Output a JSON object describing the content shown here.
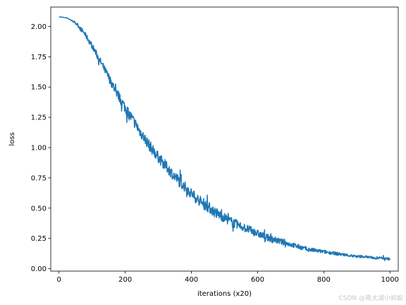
{
  "chart_data": {
    "type": "line",
    "title": "",
    "xlabel": "iterations (x20)",
    "ylabel": "loss",
    "xlim": [
      -25,
      1025
    ],
    "ylim": [
      -0.02,
      2.16
    ],
    "xticks": [
      0,
      200,
      400,
      600,
      800,
      1000
    ],
    "yticks": [
      0.0,
      0.25,
      0.5,
      0.75,
      1.0,
      1.25,
      1.5,
      1.75,
      2.0
    ],
    "ytick_labels": [
      "0.00",
      "0.25",
      "0.50",
      "0.75",
      "1.00",
      "1.25",
      "1.50",
      "1.75",
      "2.00"
    ],
    "grid": false,
    "series": [
      {
        "color": "#1f77b4",
        "x": [
          0,
          25,
          50,
          75,
          100,
          125,
          150,
          175,
          200,
          225,
          250,
          275,
          300,
          325,
          350,
          375,
          400,
          425,
          450,
          475,
          500,
          525,
          550,
          575,
          600,
          625,
          650,
          675,
          700,
          725,
          750,
          775,
          800,
          825,
          850,
          875,
          900,
          925,
          950,
          975,
          1000
        ],
        "values": [
          2.08,
          2.07,
          2.03,
          1.95,
          1.84,
          1.71,
          1.58,
          1.45,
          1.33,
          1.22,
          1.11,
          1.01,
          0.92,
          0.84,
          0.76,
          0.69,
          0.62,
          0.56,
          0.51,
          0.46,
          0.42,
          0.38,
          0.35,
          0.32,
          0.29,
          0.26,
          0.24,
          0.22,
          0.2,
          0.18,
          0.16,
          0.15,
          0.14,
          0.13,
          0.12,
          0.11,
          0.1,
          0.1,
          0.09,
          0.09,
          0.08
        ],
        "noise": [
          0,
          0.002,
          0.01,
          0.02,
          0.025,
          0.03,
          0.035,
          0.04,
          0.045,
          0.045,
          0.045,
          0.045,
          0.045,
          0.045,
          0.045,
          0.045,
          0.045,
          0.045,
          0.045,
          0.045,
          0.04,
          0.04,
          0.035,
          0.035,
          0.03,
          0.03,
          0.025,
          0.025,
          0.02,
          0.02,
          0.018,
          0.016,
          0.015,
          0.014,
          0.013,
          0.012,
          0.011,
          0.01,
          0.01,
          0.01,
          0.01
        ]
      }
    ]
  },
  "watermark": "CSDN @南太湖小蚂蚁"
}
